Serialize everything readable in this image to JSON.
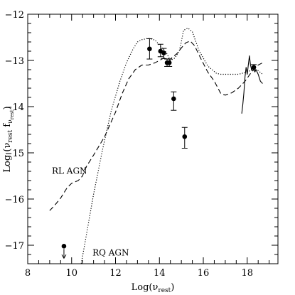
{
  "chart_data": {
    "type": "scatter",
    "xlabel": "Log(ν",
    "xlabel_sub": "rest",
    "xlabel_close": ")",
    "ylabel_prefix": "Log (ν",
    "ylabel_sub1": "rest",
    "ylabel_mid": " f",
    "ylabel_sub2": "ν",
    "ylabel_sub3": "rest",
    "ylabel_close": ")",
    "xlim": [
      8,
      19.4
    ],
    "ylim": [
      -17.4,
      -12
    ],
    "xticks": [
      8,
      10,
      12,
      14,
      16,
      18
    ],
    "yticks": [
      -12,
      -13,
      -14,
      -15,
      -16,
      -17
    ],
    "xtick_labels": [
      "8",
      "10",
      "12",
      "14",
      "16",
      "18"
    ],
    "ytick_labels": [
      "−12",
      "−13",
      "−14",
      "−15",
      "−16",
      "−17"
    ],
    "grid": false,
    "annotations": [
      {
        "text": "RL AGN",
        "x": 9.1,
        "y": -15.45
      },
      {
        "text": "RQ AGN",
        "x": 10.95,
        "y": -17.22
      }
    ],
    "points": [
      {
        "x": 13.55,
        "y": -12.75,
        "err_low": 0.22,
        "err_high": 0.22
      },
      {
        "x": 14.05,
        "y": -12.8,
        "err_low": 0.12,
        "err_high": 0.15
      },
      {
        "x": 14.2,
        "y": -12.84,
        "err_low": 0.12,
        "err_high": 0.1
      },
      {
        "x": 14.35,
        "y": -13.05,
        "err_low": 0.08,
        "err_high": 0.08
      },
      {
        "x": 14.45,
        "y": -13.05,
        "err_low": 0.08,
        "err_high": 0.08
      },
      {
        "x": 14.65,
        "y": -13.83,
        "err_low": 0.25,
        "err_high": 0.15
      },
      {
        "x": 15.15,
        "y": -14.65,
        "err_low": 0.25,
        "err_high": 0.2
      },
      {
        "x": 18.3,
        "y": -13.15,
        "err_low": 0.06,
        "err_high": 0.06
      }
    ],
    "upper_limits": [
      {
        "x": 9.65,
        "y": -17.02
      }
    ],
    "series": [
      {
        "style": "dashed",
        "x": [
          9.0,
          9.2,
          9.5,
          9.8,
          10.0,
          10.3,
          10.5,
          10.6,
          11.0,
          11.5,
          12.0,
          12.3,
          12.6,
          12.9,
          13.2,
          13.5,
          13.8,
          14.0,
          14.2,
          14.5,
          14.8,
          15.0,
          15.2,
          15.4,
          15.6,
          15.9,
          16.2,
          16.5,
          16.8,
          17.0,
          17.3,
          17.6,
          17.9,
          18.2,
          18.5,
          18.7
        ],
        "y": [
          -16.25,
          -16.15,
          -15.98,
          -15.75,
          -15.66,
          -15.6,
          -15.5,
          -15.35,
          -15.05,
          -14.65,
          -14.12,
          -13.72,
          -13.4,
          -13.2,
          -13.1,
          -13.1,
          -13.05,
          -13.0,
          -12.95,
          -12.97,
          -12.85,
          -12.73,
          -12.62,
          -12.58,
          -12.68,
          -12.97,
          -13.25,
          -13.45,
          -13.72,
          -13.75,
          -13.7,
          -13.6,
          -13.45,
          -13.25,
          -13.1,
          -13.05
        ]
      },
      {
        "style": "dotted",
        "x": [
          10.4,
          10.7,
          11.0,
          11.4,
          11.8,
          12.2,
          12.5,
          12.8,
          13.0,
          13.2,
          13.5,
          13.8,
          14.1,
          14.3,
          14.5,
          14.7,
          14.9,
          15.0,
          15.1,
          15.3,
          15.5,
          15.8,
          16.2,
          16.6,
          16.8,
          17.2,
          17.6,
          18.0,
          18.3,
          18.5,
          18.7
        ],
        "y": [
          -17.5,
          -16.7,
          -15.9,
          -14.95,
          -14.1,
          -13.45,
          -13.05,
          -12.75,
          -12.6,
          -12.55,
          -12.52,
          -12.56,
          -12.72,
          -12.82,
          -13.0,
          -12.95,
          -12.8,
          -12.6,
          -12.35,
          -12.3,
          -12.38,
          -12.78,
          -13.12,
          -13.28,
          -13.3,
          -13.3,
          -13.3,
          -13.25,
          -13.18,
          -13.22,
          -13.3
        ]
      },
      {
        "style": "solid",
        "x": [
          17.75,
          17.8,
          17.85,
          17.9,
          17.95,
          18.0,
          18.05,
          18.1,
          18.15,
          18.2,
          18.25,
          18.3,
          18.35,
          18.4,
          18.5,
          18.6,
          18.7
        ],
        "y": [
          -14.15,
          -13.95,
          -13.7,
          -13.35,
          -13.15,
          -13.3,
          -13.1,
          -12.9,
          -13.1,
          -13.2,
          -13.15,
          -13.2,
          -13.25,
          -13.2,
          -13.3,
          -13.45,
          -13.5
        ]
      }
    ]
  }
}
